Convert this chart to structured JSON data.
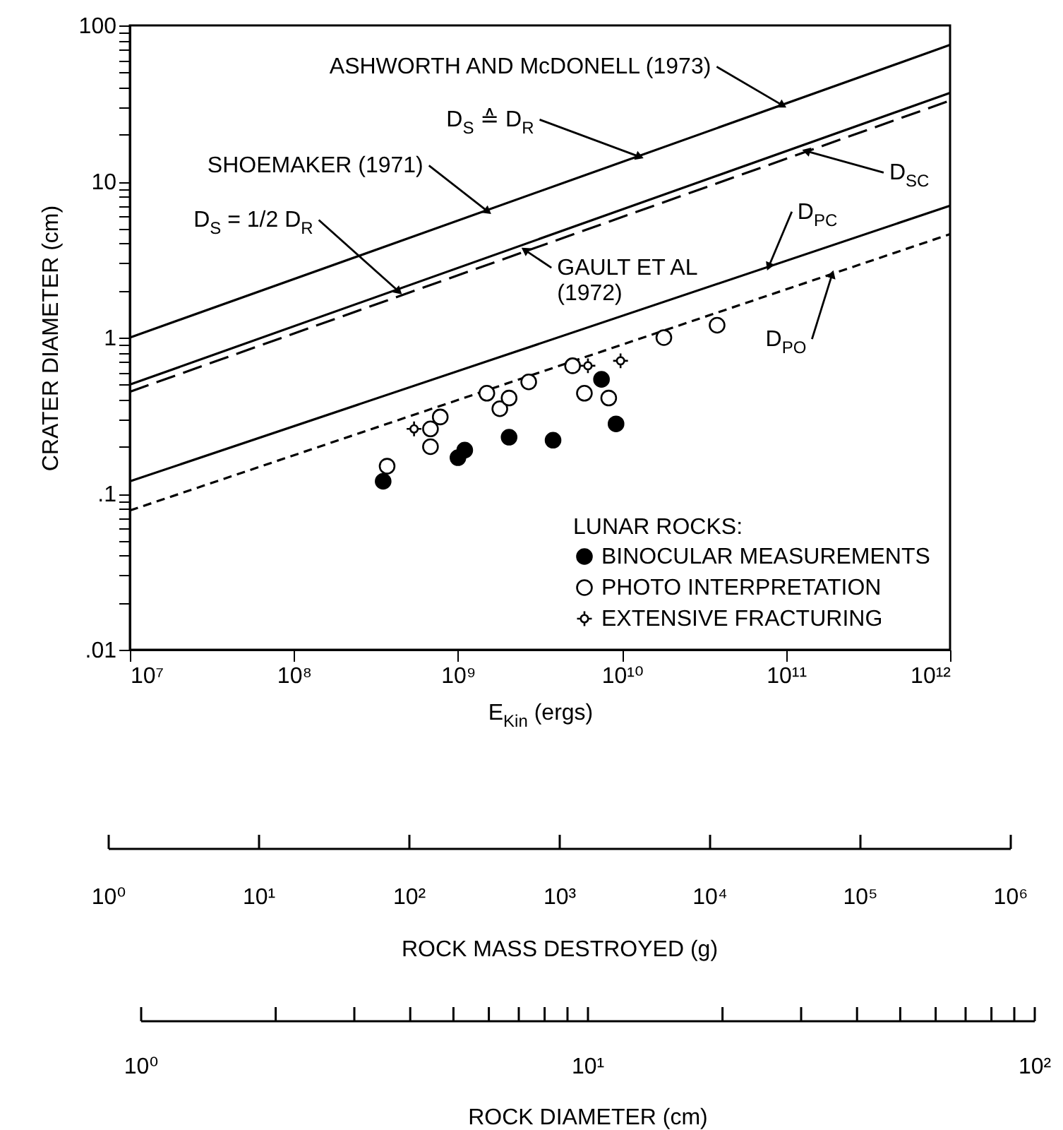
{
  "chart_data": {
    "type": "scatter",
    "xlabel": "E$_{Kin}$ (ergs)",
    "ylabel": "CRATER DIAMETER (cm)",
    "legend_title": "LUNAR ROCKS:",
    "legend": "bottom right",
    "log": "xy",
    "xlim": [
      10000000.0,
      1000000000000.0
    ],
    "xticks": [
      {
        "value": 10000000.0,
        "label": "10⁷"
      },
      {
        "value": 100000000.0,
        "label": "10⁸"
      },
      {
        "value": 1000000000.0,
        "label": "10⁹"
      },
      {
        "value": 10000000000.0,
        "label": "10¹⁰"
      },
      {
        "value": 100000000000.0,
        "label": "10¹¹"
      },
      {
        "value": 1000000000000.0,
        "label": "10¹²"
      }
    ],
    "ylim": [
      0.01,
      100
    ],
    "yticks": [
      {
        "value": 0.01,
        "label": ".01"
      },
      {
        "value": 0.02,
        "label": null
      },
      {
        "value": 0.03,
        "label": null
      },
      {
        "value": 0.04,
        "label": null
      },
      {
        "value": 0.05,
        "label": null
      },
      {
        "value": 0.06,
        "label": null
      },
      {
        "value": 0.07,
        "label": null
      },
      {
        "value": 0.08,
        "label": null
      },
      {
        "value": 0.09,
        "label": null
      },
      {
        "value": 0.1,
        "label": ".1"
      },
      {
        "value": 0.2,
        "label": null
      },
      {
        "value": 0.3,
        "label": null
      },
      {
        "value": 0.4,
        "label": null
      },
      {
        "value": 0.5,
        "label": null
      },
      {
        "value": 0.6,
        "label": null
      },
      {
        "value": 0.7,
        "label": null
      },
      {
        "value": 0.8,
        "label": null
      },
      {
        "value": 0.9,
        "label": null
      },
      1,
      {
        "value": 2,
        "label": null
      },
      {
        "value": 3,
        "label": null
      },
      {
        "value": 4,
        "label": null
      },
      {
        "value": 5,
        "label": null
      },
      {
        "value": 6,
        "label": null
      },
      {
        "value": 7,
        "label": null
      },
      {
        "value": 8,
        "label": null
      },
      {
        "value": 9,
        "label": null
      },
      10,
      {
        "value": 20,
        "label": null
      },
      {
        "value": 30,
        "label": null
      },
      {
        "value": 40,
        "label": null
      },
      {
        "value": 50,
        "label": null
      },
      {
        "value": 60,
        "label": null
      },
      {
        "value": 70,
        "label": null
      },
      {
        "value": 80,
        "label": null
      },
      {
        "value": 90,
        "label": null
      },
      100
    ],
    "series": [
      {
        "type": "line",
        "color": "#000000",
        "line_style": "solid",
        "x": [
          10000000.0,
          1000000000000.0
        ],
        "values": [
          1,
          75
        ]
      },
      {
        "type": "line",
        "color": "#000000",
        "line_style": "solid",
        "x": [
          10000000.0,
          1000000000000.0
        ],
        "values": [
          0.5,
          37
        ]
      },
      {
        "type": "line",
        "color": "#000000",
        "line_style": "dashed",
        "x": [
          10000000.0,
          1000000000000.0
        ],
        "values": [
          0.45,
          33
        ]
      },
      {
        "type": "line",
        "color": "#000000",
        "line_style": "solid",
        "x": [
          10000000.0,
          1000000000000.0
        ],
        "values": [
          0.12,
          7
        ]
      },
      {
        "type": "line",
        "color": "#000000",
        "line_style": "dotted",
        "x": [
          10000000.0,
          1000000000000.0
        ],
        "values": [
          0.078,
          4.6
        ]
      },
      {
        "type": "scatter",
        "name": "BINOCULAR MEASUREMENTS",
        "color": "#000000",
        "marker": "circle",
        "x": [
          350000000.0,
          1000000000.0,
          1100000000.0,
          2050000000.0,
          3800000000.0,
          7500000000.0,
          9200000000.0
        ],
        "values": [
          0.12,
          0.17,
          0.19,
          0.23,
          0.22,
          0.54,
          0.28
        ]
      },
      {
        "type": "scatter",
        "name": "PHOTO INTERPRETATION",
        "color": "#ffffff",
        "marker": "circle",
        "x": [
          370000000.0,
          680000000.0,
          680000000.0,
          780000000.0,
          1500000000.0,
          1800000000.0,
          2050000000.0,
          2700000000.0,
          5000000000.0,
          5900000000.0,
          8300000000.0,
          18000000000.0,
          38000000000.0
        ],
        "values": [
          0.15,
          0.26,
          0.2,
          0.31,
          0.44,
          0.35,
          0.41,
          0.52,
          0.66,
          0.44,
          0.41,
          1.0,
          1.2
        ]
      },
      {
        "type": "scatter",
        "name": "EXTENSIVE FRACTURING",
        "color": "#ffffff",
        "marker": "cross",
        "x": [
          540000000.0,
          6200000000.0,
          9800000000.0
        ],
        "values": [
          0.26,
          0.66,
          0.71
        ]
      }
    ],
    "annotations": [
      {
        "text": "ASHWORTH AND McDONELL (1973)",
        "x": 94000000000.0,
        "y": 31
      },
      {
        "text": "D$_{S}$ ≙ D$_{R}$",
        "x": 12600000000.0,
        "y": 14.5
      },
      {
        "text": "SHOEMAKER (1971)",
        "x": 1500000000.0,
        "y": 6.5
      },
      {
        "text": "D$_{S}$ = 1/2 D$_{R}$",
        "x": 430000000.0,
        "y": 2.0
      },
      {
        "text": "GAULT ET AL\n(1972)",
        "x": 2600000000.0,
        "y": 3.6
      },
      {
        "text": "D$_{SC}$",
        "x": 135000000000.0,
        "y": 15.6
      },
      {
        "text": "D$_{PC}$",
        "x": 79000000000.0,
        "y": 2.9
      },
      {
        "text": "D$_{PO}$",
        "x": 190000000000.0,
        "y": 2.5
      },
      "10⁰",
      "10¹",
      "10²",
      "10³",
      "10⁴",
      "10⁵",
      "10⁶",
      "ROCK MASS DESTROYED (g)",
      "10⁰",
      "10¹",
      "10²",
      "ROCK DIAMETER (cm)"
    ]
  }
}
